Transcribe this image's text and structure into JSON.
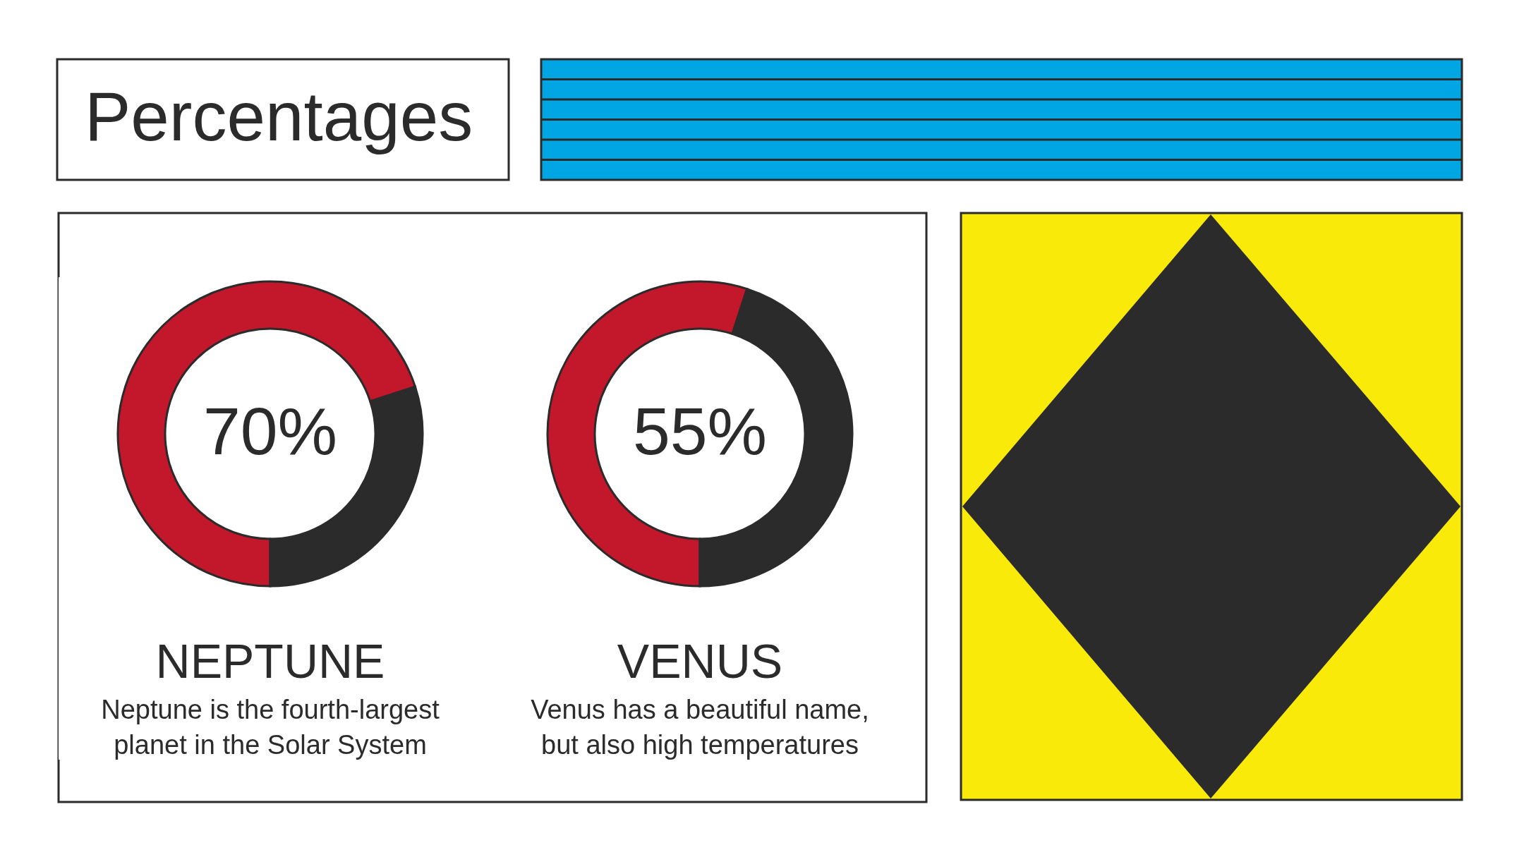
{
  "chart_data": [
    {
      "type": "other",
      "title": "Percentages"
    },
    {
      "type": "donut",
      "title": "NEPTUNE",
      "subtitle": "Neptune is the fourth-largest planet in the Solar System",
      "categories": [
        null,
        null
      ],
      "values": [
        70,
        30
      ],
      "colors": [
        "#c3172b",
        "#2b2b2b"
      ],
      "value_labels": [
        "70%",
        null
      ]
    },
    {
      "type": "donut",
      "title": "VENUS",
      "subtitle": "Venus has a beautiful name, but also high temperatures",
      "categories": [
        null,
        null
      ],
      "values": [
        55,
        45
      ],
      "colors": [
        "#c3172b",
        "#2b2b2b"
      ],
      "value_labels": [
        "55%",
        null
      ]
    }
  ]
}
